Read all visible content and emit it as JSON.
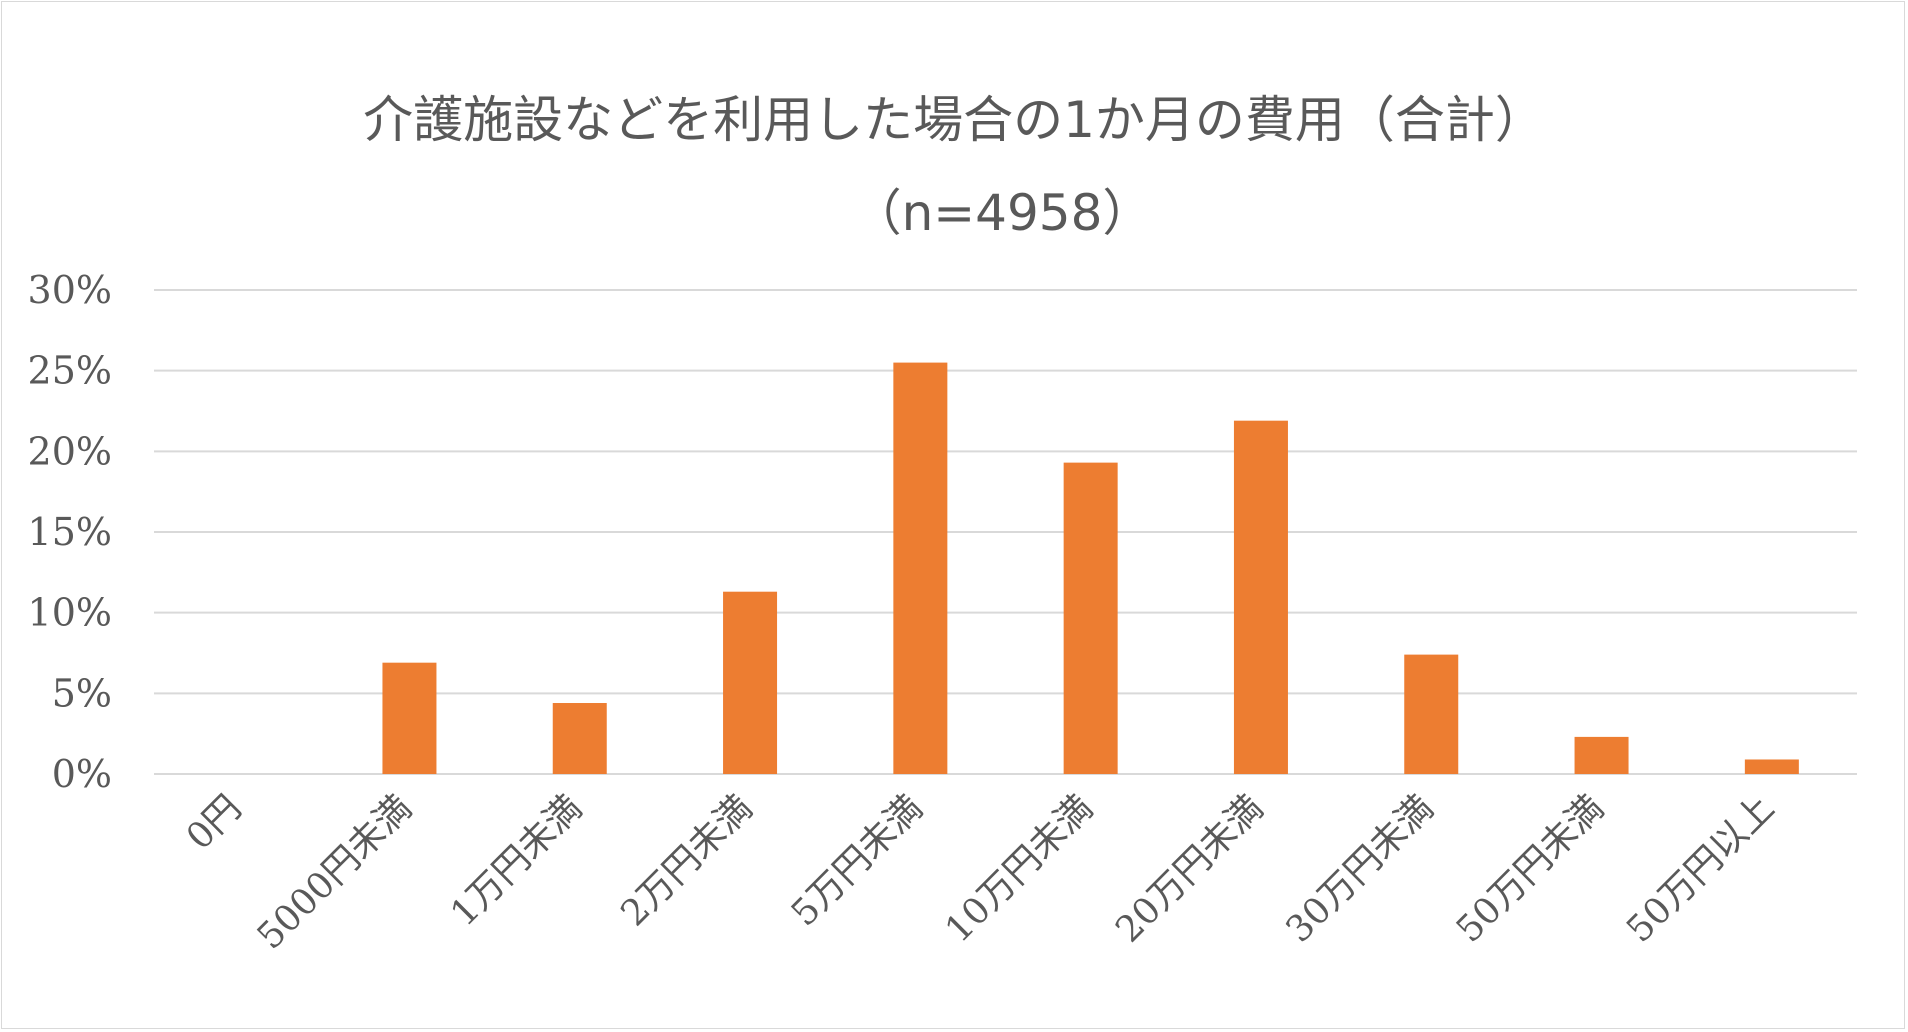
{
  "chart_data": {
    "type": "bar",
    "title": "介護施設などを利用した場合の1か月の費用（合計）",
    "subtitle": "（n=4958）",
    "xlabel": "",
    "ylabel": "",
    "categories": [
      "0円",
      "5000円未満",
      "1万円未満",
      "2万円未満",
      "5万円未満",
      "10万円未満",
      "20万円未満",
      "30万円未満",
      "50万円未満",
      "50万円以上"
    ],
    "values": [
      0,
      6.9,
      4.4,
      11.3,
      25.5,
      19.3,
      21.9,
      7.4,
      2.3,
      0.9
    ],
    "ylim": [
      0,
      30
    ],
    "yticks": [
      "0%",
      "5%",
      "10%",
      "15%",
      "20%",
      "25%",
      "30%"
    ],
    "ytick_values": [
      0,
      5,
      10,
      15,
      20,
      25,
      30
    ],
    "grid": true,
    "legend": "none",
    "bar_color": "#ed7d31",
    "grid_color": "#d9d9d9",
    "text_color": "#595959"
  }
}
